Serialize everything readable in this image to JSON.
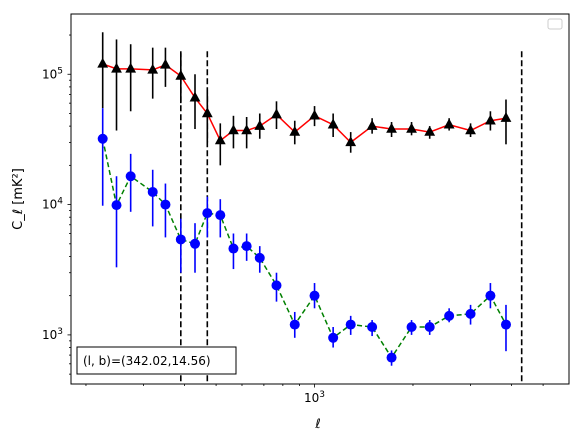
{
  "chart_data": {
    "type": "line",
    "xlabel": "ℓ",
    "ylabel": "C_ℓ  [mK²]",
    "xscale": "log",
    "yscale": "log",
    "xlim": [
      180,
      6000
    ],
    "ylim": [
      420,
      290000
    ],
    "x_ticks": [
      {
        "value": 1000,
        "base": "10",
        "exp": "3"
      }
    ],
    "y_ticks": [
      {
        "value": 1000,
        "base": "10",
        "exp": "3"
      },
      {
        "value": 10000,
        "base": "10",
        "exp": "4"
      },
      {
        "value": 100000,
        "base": "10",
        "exp": "5"
      }
    ],
    "vlines": [
      390,
      470,
      4300
    ],
    "annotation": "(l, b)=(342.02,14.56)",
    "legend": {
      "position": "top-right",
      "entries": []
    },
    "grid": false,
    "series": [
      {
        "marker": "triangle",
        "color": "#000000",
        "line_color": "#ff0000",
        "line_style": "solid",
        "points": [
          {
            "x": 225,
            "y": 120000,
            "lo": 55000,
            "hi": 210000
          },
          {
            "x": 248,
            "y": 110000,
            "lo": 37000,
            "hi": 185000
          },
          {
            "x": 274,
            "y": 110000,
            "lo": 52000,
            "hi": 170000
          },
          {
            "x": 320,
            "y": 108000,
            "lo": 65000,
            "hi": 160000
          },
          {
            "x": 350,
            "y": 118000,
            "lo": 80000,
            "hi": 160000
          },
          {
            "x": 390,
            "y": 97000,
            "lo": 60000,
            "hi": 145000
          },
          {
            "x": 431,
            "y": 66000,
            "lo": 38000,
            "hi": 100000
          },
          {
            "x": 470,
            "y": 50000,
            "lo": 30000,
            "hi": 72000
          },
          {
            "x": 515,
            "y": 31000,
            "lo": 20000,
            "hi": 42000
          },
          {
            "x": 565,
            "y": 37000,
            "lo": 27000,
            "hi": 48000
          },
          {
            "x": 620,
            "y": 37000,
            "lo": 27000,
            "hi": 47000
          },
          {
            "x": 680,
            "y": 40000,
            "lo": 32000,
            "hi": 50000
          },
          {
            "x": 765,
            "y": 49000,
            "lo": 38000,
            "hi": 62000
          },
          {
            "x": 870,
            "y": 36000,
            "lo": 29000,
            "hi": 44000
          },
          {
            "x": 1000,
            "y": 48000,
            "lo": 40000,
            "hi": 57000
          },
          {
            "x": 1140,
            "y": 41000,
            "lo": 33000,
            "hi": 50000
          },
          {
            "x": 1290,
            "y": 30000,
            "lo": 25000,
            "hi": 36000
          },
          {
            "x": 1500,
            "y": 40000,
            "lo": 35000,
            "hi": 46000
          },
          {
            "x": 1720,
            "y": 38000,
            "lo": 33000,
            "hi": 43000
          },
          {
            "x": 1980,
            "y": 38000,
            "lo": 34000,
            "hi": 43000
          },
          {
            "x": 2250,
            "y": 36000,
            "lo": 32000,
            "hi": 40000
          },
          {
            "x": 2580,
            "y": 41000,
            "lo": 37000,
            "hi": 46000
          },
          {
            "x": 3000,
            "y": 37000,
            "lo": 33000,
            "hi": 42000
          },
          {
            "x": 3450,
            "y": 44000,
            "lo": 37000,
            "hi": 52000
          },
          {
            "x": 3850,
            "y": 46000,
            "lo": 29000,
            "hi": 64000
          }
        ]
      },
      {
        "marker": "circle",
        "color": "#0000ff",
        "line_color": "#008000",
        "line_style": "dashed",
        "points": [
          {
            "x": 225,
            "y": 32000,
            "lo": 9800,
            "hi": 55000
          },
          {
            "x": 248,
            "y": 9900,
            "lo": 3300,
            "hi": 16500
          },
          {
            "x": 274,
            "y": 16500,
            "lo": 8800,
            "hi": 24500
          },
          {
            "x": 320,
            "y": 12500,
            "lo": 6800,
            "hi": 18500
          },
          {
            "x": 350,
            "y": 10000,
            "lo": 5600,
            "hi": 14500
          },
          {
            "x": 390,
            "y": 5400,
            "lo": 3000,
            "hi": 7800
          },
          {
            "x": 431,
            "y": 5000,
            "lo": 3000,
            "hi": 7200
          },
          {
            "x": 470,
            "y": 8600,
            "lo": 5600,
            "hi": 11500
          },
          {
            "x": 515,
            "y": 8300,
            "lo": 5600,
            "hi": 11000
          },
          {
            "x": 565,
            "y": 4600,
            "lo": 3200,
            "hi": 6000
          },
          {
            "x": 620,
            "y": 4800,
            "lo": 3700,
            "hi": 6000
          },
          {
            "x": 680,
            "y": 3900,
            "lo": 3000,
            "hi": 4800
          },
          {
            "x": 765,
            "y": 2400,
            "lo": 1800,
            "hi": 3000
          },
          {
            "x": 870,
            "y": 1200,
            "lo": 950,
            "hi": 1500
          },
          {
            "x": 1000,
            "y": 2000,
            "lo": 1600,
            "hi": 2500
          },
          {
            "x": 1140,
            "y": 950,
            "lo": 800,
            "hi": 1150
          },
          {
            "x": 1290,
            "y": 1200,
            "lo": 1000,
            "hi": 1400
          },
          {
            "x": 1500,
            "y": 1150,
            "lo": 980,
            "hi": 1300
          },
          {
            "x": 1720,
            "y": 670,
            "lo": 580,
            "hi": 760
          },
          {
            "x": 1980,
            "y": 1150,
            "lo": 1000,
            "hi": 1300
          },
          {
            "x": 2250,
            "y": 1150,
            "lo": 1000,
            "hi": 1300
          },
          {
            "x": 2580,
            "y": 1400,
            "lo": 1250,
            "hi": 1600
          },
          {
            "x": 3000,
            "y": 1450,
            "lo": 1200,
            "hi": 1700
          },
          {
            "x": 3450,
            "y": 2000,
            "lo": 1600,
            "hi": 2500
          },
          {
            "x": 3850,
            "y": 1200,
            "lo": 750,
            "hi": 1700
          }
        ]
      }
    ]
  }
}
